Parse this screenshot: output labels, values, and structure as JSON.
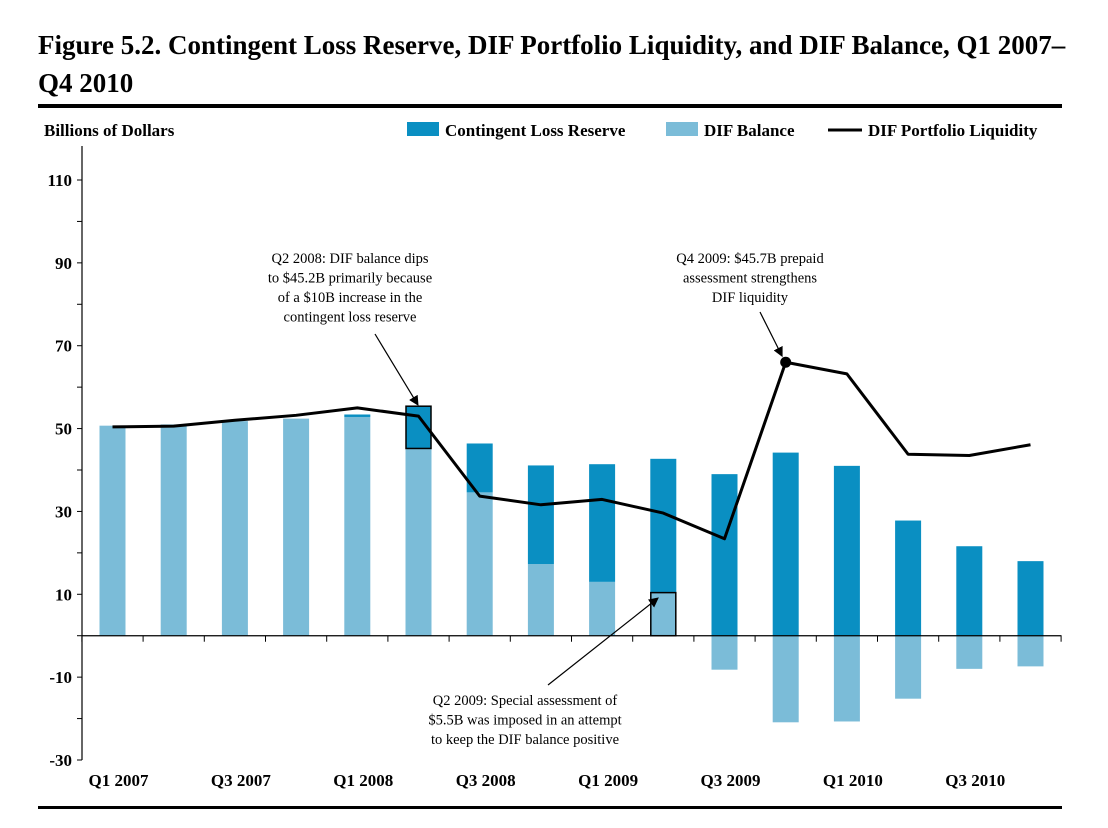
{
  "title": "Figure 5.2. Contingent Loss Reserve, DIF Portfolio Liquidity, and DIF Balance, Q1 2007–Q4 2010",
  "colors": {
    "contingent_loss_reserve": "#0a8fc2",
    "dif_balance": "#7bbcd8",
    "dif_portfolio_liquidity": "#000000"
  },
  "chart_data": {
    "type": "bar",
    "title": "Figure 5.2. Contingent Loss Reserve, DIF Portfolio Liquidity, and DIF Balance, Q1 2007–Q4 2010",
    "ylabel": "Billions of Dollars",
    "xlabel": "",
    "ylim": [
      -30,
      120
    ],
    "yticks": [
      110,
      90,
      70,
      50,
      30,
      10,
      -10,
      -30
    ],
    "categories": [
      "Q1 2007",
      "Q2 2007",
      "Q3 2007",
      "Q4 2007",
      "Q1 2008",
      "Q2 2008",
      "Q3 2008",
      "Q4 2008",
      "Q1 2009",
      "Q2 2009",
      "Q3 2009",
      "Q4 2009",
      "Q1 2010",
      "Q2 2010",
      "Q3 2010",
      "Q4 2010"
    ],
    "xtick_labels": [
      {
        "index": 0,
        "label": "Q1 2007"
      },
      {
        "index": 2,
        "label": "Q3 2007"
      },
      {
        "index": 4,
        "label": "Q1 2008"
      },
      {
        "index": 6,
        "label": "Q3 2008"
      },
      {
        "index": 8,
        "label": "Q1 2009"
      },
      {
        "index": 10,
        "label": "Q3 2009"
      },
      {
        "index": 12,
        "label": "Q1 2010"
      },
      {
        "index": 14,
        "label": "Q3 2010"
      }
    ],
    "legend_position": "top",
    "grid": false,
    "series": [
      {
        "name": "Contingent Loss Reserve",
        "type": "bar",
        "values": [
          0,
          0,
          0,
          0,
          0.6,
          10.2,
          11.8,
          23.8,
          28.4,
          32.3,
          47.2,
          65.1,
          61.7,
          43.0,
          29.6,
          25.4
        ]
      },
      {
        "name": "DIF Balance",
        "type": "bar",
        "values": [
          50.7,
          51.0,
          51.8,
          52.4,
          52.8,
          45.2,
          34.6,
          17.3,
          13.0,
          10.4,
          -8.2,
          -20.9,
          -20.7,
          -15.2,
          -8.0,
          -7.4
        ]
      },
      {
        "name": "DIF Portfolio Liquidity",
        "type": "line",
        "values": [
          50.4,
          50.6,
          52.0,
          53.2,
          55.0,
          53.0,
          33.7,
          31.6,
          32.9,
          29.6,
          23.4,
          66.0,
          63.2,
          43.8,
          43.5,
          46.1
        ]
      }
    ],
    "highlights": [
      {
        "index": 5,
        "series": "Contingent Loss Reserve"
      },
      {
        "index": 9,
        "series": "DIF Balance"
      }
    ],
    "marker": {
      "index": 11,
      "series": "DIF Portfolio Liquidity"
    },
    "annotations": [
      {
        "lines": [
          "Q2 2008: DIF balance dips",
          "to $45.2B primarily because",
          "of a $10B increase in the",
          "contingent loss reserve"
        ],
        "target_index": 5,
        "target_value": 55.4
      },
      {
        "lines": [
          "Q4 2009: $45.7B prepaid",
          "assessment strengthens",
          "DIF liquidity"
        ],
        "target_index": 11,
        "target_value": 66.0
      },
      {
        "lines": [
          "Q2 2009: Special assessment of",
          "$5.5B was imposed in an attempt",
          "to keep the DIF balance positive"
        ],
        "target_index": 9,
        "target_value": 10.4
      }
    ]
  }
}
